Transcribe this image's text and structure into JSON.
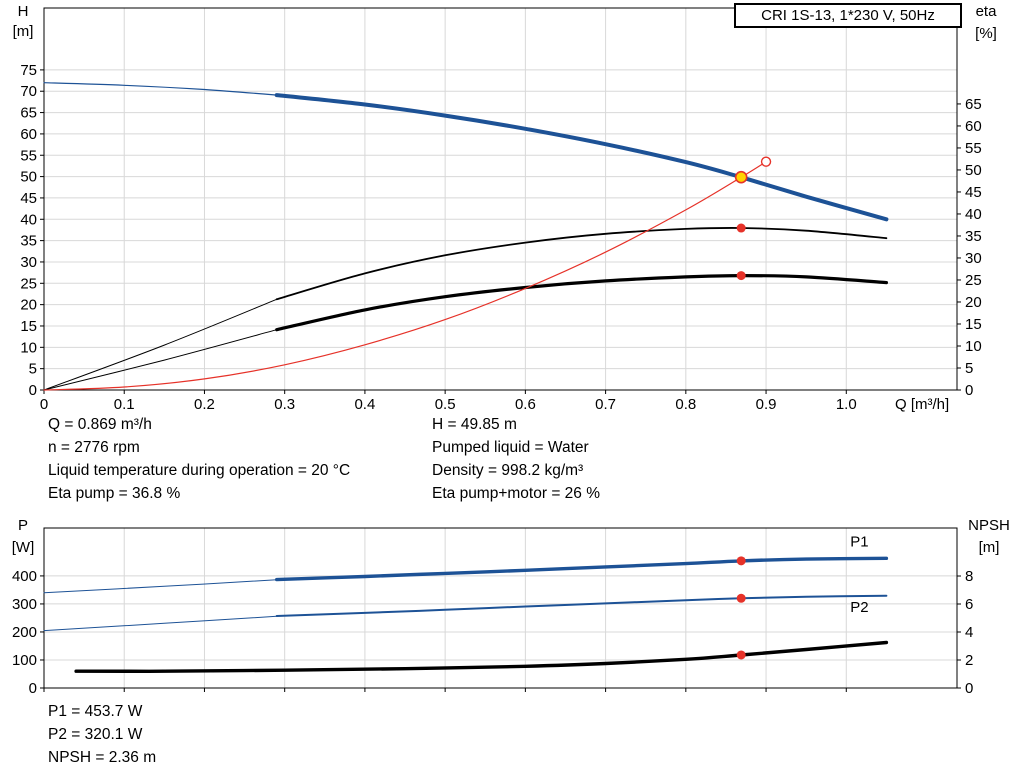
{
  "colors": {
    "curve_blue": "#1d5296",
    "red": "#e63229",
    "yellow": "#ffd400",
    "grid": "#d8d8d8",
    "axis": "#000000"
  },
  "axis_labels": {
    "h": "H",
    "h_unit": "[m]",
    "eta": "eta",
    "eta_unit": "[%]",
    "p": "P",
    "p_unit": "[W]",
    "npsh": "NPSH",
    "npsh_unit": "[m]"
  },
  "annotations": {
    "left": [
      "Q = 0.869 m³/h",
      "n = 2776 rpm",
      "Liquid temperature during operation = 20 °C",
      "Eta pump = 36.8 %"
    ],
    "right": [
      "H = 49.85 m",
      "Pumped liquid = Water",
      "Density = 998.2 kg/m³",
      "Eta pump+motor = 26 %"
    ],
    "bottom": [
      "P1 = 453.7 W",
      "P2 = 320.1 W",
      "NPSH = 2.36 m"
    ]
  },
  "chart_data": [
    {
      "type": "line",
      "name": "qh-eta-chart",
      "title": "CRI 1S-13, 1*230 V, 50Hz",
      "x_axis": {
        "label": "Q [m³/h]",
        "ticks": [
          0,
          0.1,
          0.2,
          0.3,
          0.4,
          0.5,
          0.6,
          0.7,
          0.8,
          0.9,
          1.0
        ],
        "tick_labels": [
          "0",
          "0.1",
          "0.2",
          "0.3",
          "0.4",
          "0.5",
          "0.6",
          "0.7",
          "0.8",
          "0.9",
          "1.0"
        ],
        "max": 1.138
      },
      "y_left": {
        "label": "H [m]",
        "ticks": [
          0,
          5,
          10,
          15,
          20,
          25,
          30,
          35,
          40,
          45,
          50,
          55,
          60,
          65,
          70,
          75
        ],
        "max": 89.5
      },
      "y_right": {
        "label": "eta [%]",
        "ticks": [
          0,
          5,
          10,
          15,
          20,
          25,
          30,
          35,
          40,
          45,
          50,
          55,
          60,
          65
        ],
        "max": 86.8
      },
      "series": [
        {
          "name": "h-curve-extension",
          "axis": "left",
          "color": "#1d5296",
          "width": 1.2,
          "points": [
            [
              0,
              72
            ],
            [
              0.1,
              71.4
            ],
            [
              0.2,
              70.4
            ],
            [
              0.29,
              69.1
            ]
          ]
        },
        {
          "name": "h-curve",
          "axis": "left",
          "color": "#1d5296",
          "width": 4,
          "points": [
            [
              0.29,
              69.1
            ],
            [
              0.4,
              66.9
            ],
            [
              0.5,
              64.3
            ],
            [
              0.6,
              61.2
            ],
            [
              0.7,
              57.6
            ],
            [
              0.8,
              53.4
            ],
            [
              0.869,
              49.85
            ],
            [
              0.95,
              45.3
            ],
            [
              1.05,
              40
            ]
          ]
        },
        {
          "name": "eta-pump-extension",
          "axis": "right",
          "color": "#000000",
          "width": 1,
          "points": [
            [
              0,
              0
            ],
            [
              0.15,
              10.2
            ],
            [
              0.29,
              20.6
            ]
          ]
        },
        {
          "name": "eta-pump-curve",
          "axis": "right",
          "color": "#000000",
          "width": 1.8,
          "points": [
            [
              0.29,
              20.6
            ],
            [
              0.4,
              26.5
            ],
            [
              0.5,
              30.6
            ],
            [
              0.6,
              33.5
            ],
            [
              0.7,
              35.5
            ],
            [
              0.8,
              36.6
            ],
            [
              0.869,
              36.8
            ],
            [
              0.95,
              36.2
            ],
            [
              1.05,
              34.5
            ]
          ]
        },
        {
          "name": "eta-pump-motor-extension",
          "axis": "right",
          "color": "#000000",
          "width": 1,
          "points": [
            [
              0,
              0
            ],
            [
              0.15,
              6.8
            ],
            [
              0.29,
              13.7
            ]
          ]
        },
        {
          "name": "eta-pump-motor-curve",
          "axis": "right",
          "color": "#000000",
          "width": 3.2,
          "points": [
            [
              0.29,
              13.7
            ],
            [
              0.4,
              18.2
            ],
            [
              0.5,
              21.2
            ],
            [
              0.6,
              23.3
            ],
            [
              0.7,
              24.8
            ],
            [
              0.8,
              25.7
            ],
            [
              0.869,
              26
            ],
            [
              0.95,
              25.7
            ],
            [
              1.05,
              24.4
            ]
          ]
        },
        {
          "name": "system-curve",
          "axis": "left",
          "color": "#e63229",
          "width": 1.2,
          "points": [
            [
              0,
              0
            ],
            [
              0.1,
              0.7
            ],
            [
              0.2,
              2.6
            ],
            [
              0.3,
              5.9
            ],
            [
              0.4,
              10.6
            ],
            [
              0.5,
              16.5
            ],
            [
              0.6,
              23.8
            ],
            [
              0.7,
              32.3
            ],
            [
              0.8,
              42.2
            ],
            [
              0.869,
              49.85
            ],
            [
              0.9,
              53.5
            ]
          ]
        }
      ],
      "markers": [
        {
          "name": "duty-point",
          "style": "yellow",
          "q": 0.869,
          "value": 49.85,
          "axis": "left"
        },
        {
          "name": "rated-point",
          "style": "open",
          "q": 0.9,
          "value": 53.5,
          "axis": "left"
        },
        {
          "name": "eta-pump-point",
          "style": "red",
          "q": 0.869,
          "value": 36.8,
          "axis": "right"
        },
        {
          "name": "eta-pump-motor-point",
          "style": "red",
          "q": 0.869,
          "value": 26,
          "axis": "right"
        }
      ]
    },
    {
      "type": "line",
      "name": "power-npsh-chart",
      "x_axis": {
        "label": "",
        "ticks": [
          0,
          0.1,
          0.2,
          0.3,
          0.4,
          0.5,
          0.6,
          0.7,
          0.8,
          0.9,
          1.0
        ],
        "tick_labels": null,
        "max": 1.138
      },
      "y_left": {
        "label": "P [W]",
        "ticks": [
          0,
          100,
          200,
          300,
          400
        ],
        "max": 571
      },
      "y_right": {
        "label": "NPSH [m]",
        "ticks": [
          0,
          2,
          4,
          6,
          8
        ],
        "max": 11.43
      },
      "series": [
        {
          "name": "p1-extension",
          "axis": "left",
          "color": "#1d5296",
          "width": 1,
          "points": [
            [
              0,
              340
            ],
            [
              0.15,
              363
            ],
            [
              0.29,
              386
            ]
          ]
        },
        {
          "name": "p1-curve",
          "axis": "left",
          "color": "#1d5296",
          "width": 3.4,
          "points": [
            [
              0.29,
              387
            ],
            [
              0.4,
              398
            ],
            [
              0.5,
              409
            ],
            [
              0.6,
              420
            ],
            [
              0.7,
              432
            ],
            [
              0.8,
              444
            ],
            [
              0.869,
              453.7
            ],
            [
              0.95,
              460
            ],
            [
              1.05,
              463
            ]
          ]
        },
        {
          "name": "p2-extension",
          "axis": "left",
          "color": "#1d5296",
          "width": 1,
          "points": [
            [
              0,
              205
            ],
            [
              0.15,
              231
            ],
            [
              0.29,
              256
            ]
          ]
        },
        {
          "name": "p2-curve",
          "axis": "left",
          "color": "#1d5296",
          "width": 2,
          "points": [
            [
              0.29,
              257
            ],
            [
              0.4,
              268
            ],
            [
              0.5,
              279
            ],
            [
              0.6,
              291
            ],
            [
              0.7,
              302
            ],
            [
              0.8,
              313
            ],
            [
              0.869,
              320.1
            ],
            [
              0.95,
              326
            ],
            [
              1.05,
              329
            ]
          ]
        },
        {
          "name": "npsh-curve",
          "axis": "right",
          "color": "#000000",
          "width": 3.4,
          "points": [
            [
              0.04,
              1.2
            ],
            [
              0.15,
              1.2
            ],
            [
              0.3,
              1.27
            ],
            [
              0.45,
              1.38
            ],
            [
              0.6,
              1.55
            ],
            [
              0.7,
              1.75
            ],
            [
              0.8,
              2.05
            ],
            [
              0.869,
              2.36
            ],
            [
              0.95,
              2.75
            ],
            [
              1.05,
              3.25
            ]
          ]
        }
      ],
      "series_labels": [
        {
          "text": "P1",
          "q": 1.005,
          "value": 505,
          "axis": "left",
          "color": "#1d5296"
        },
        {
          "text": "P2",
          "q": 1.005,
          "value": 272,
          "axis": "left",
          "color": "#1d5296"
        }
      ],
      "markers": [
        {
          "name": "p1-point",
          "style": "red",
          "q": 0.869,
          "value": 453.7,
          "axis": "left"
        },
        {
          "name": "p2-point",
          "style": "red",
          "q": 0.869,
          "value": 320.1,
          "axis": "left"
        },
        {
          "name": "npsh-point",
          "style": "red",
          "q": 0.869,
          "value": 2.36,
          "axis": "right"
        }
      ]
    }
  ]
}
